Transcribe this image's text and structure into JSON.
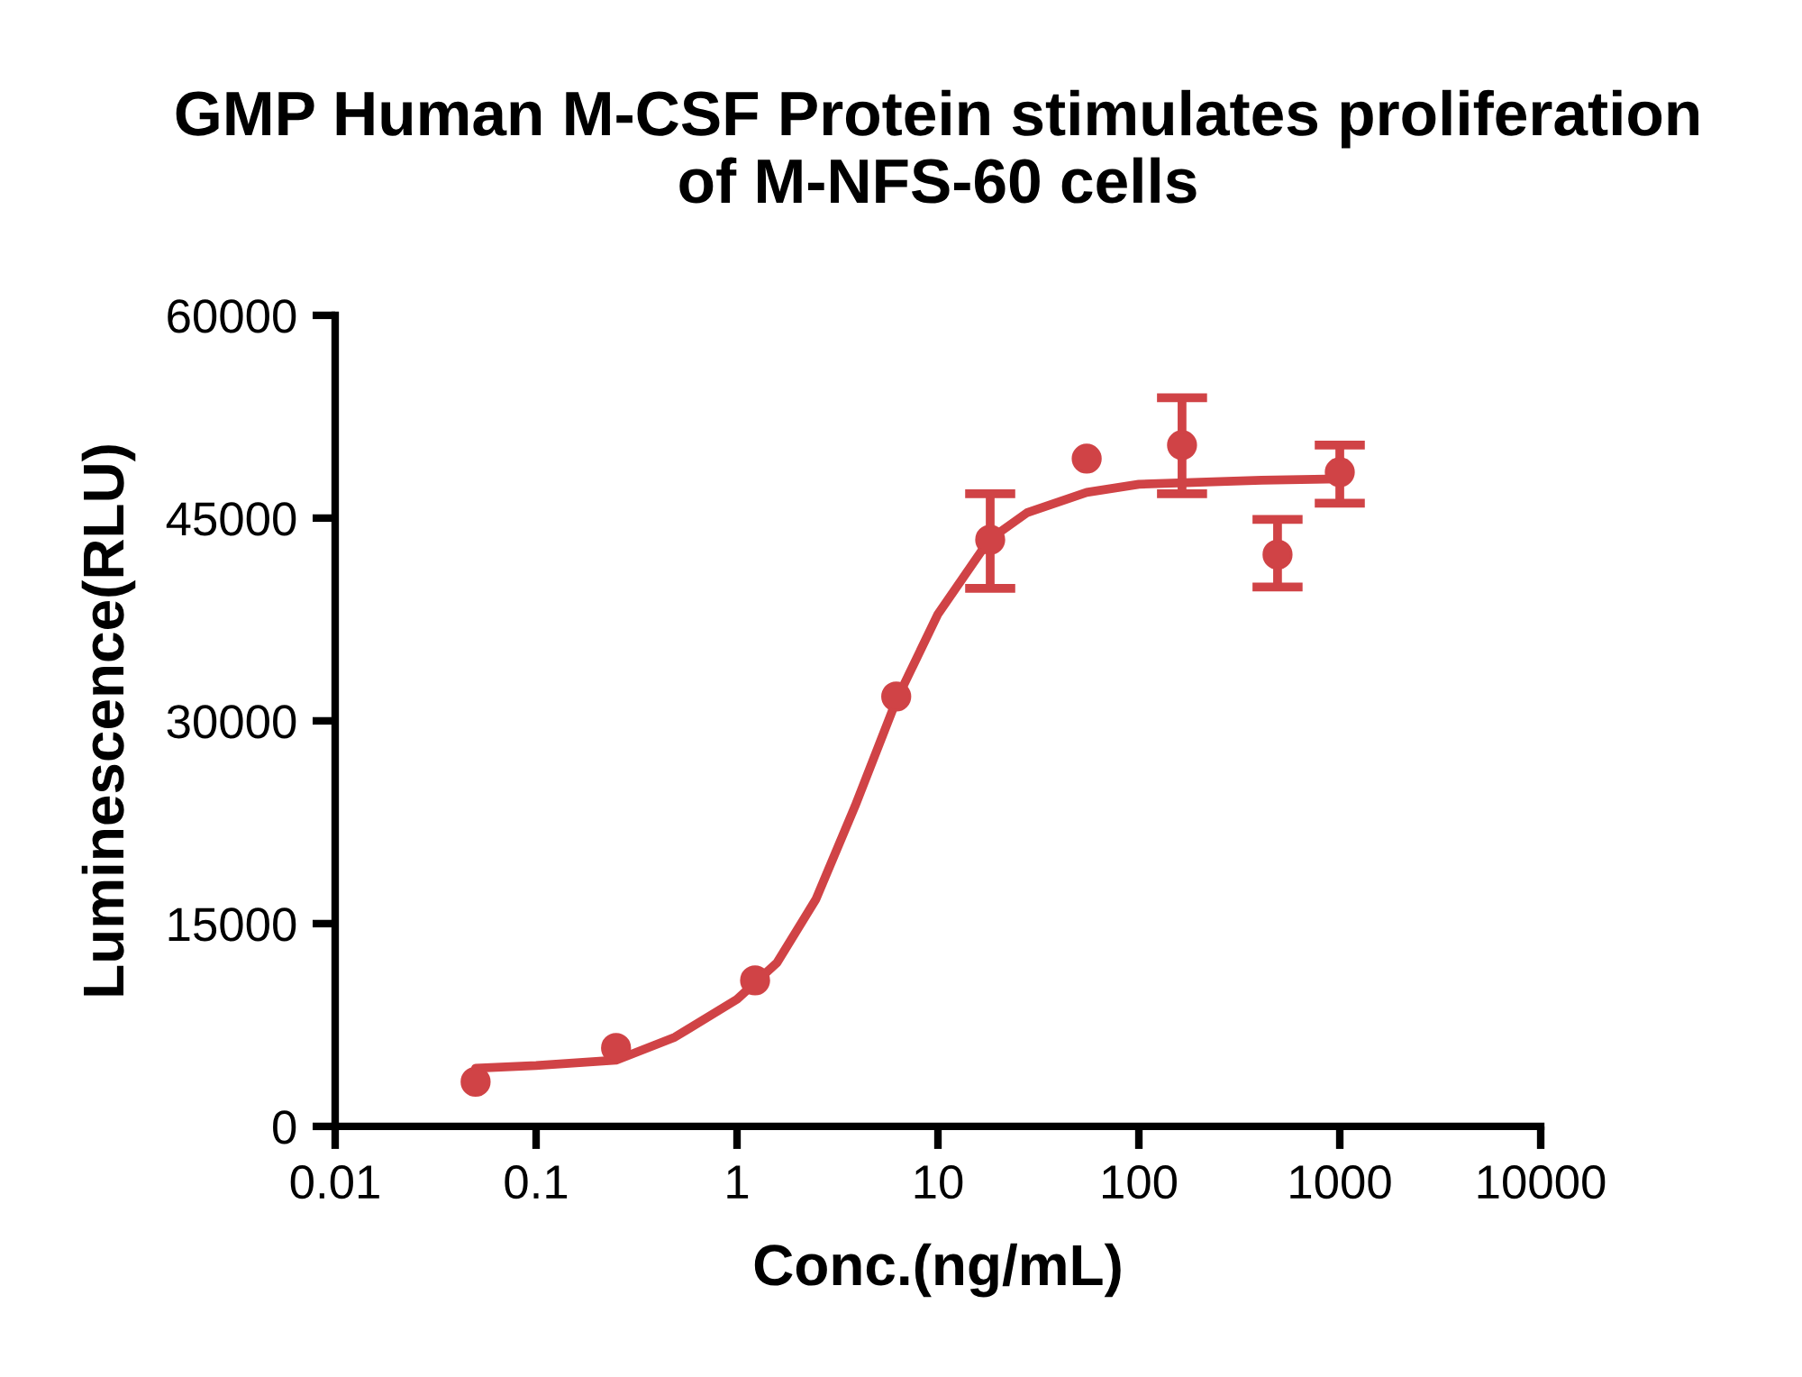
{
  "chart_data": {
    "type": "scatter",
    "title": "GMP Human M-CSF Protein stimulates proliferation\nof M-NFS-60 cells",
    "xlabel": "Conc.(ng/mL)",
    "ylabel": "Luminescence(RLU)",
    "log": "x",
    "xlim": [
      0.01,
      10000
    ],
    "xticks": [
      {
        "value": 0.01,
        "label": "0.01"
      },
      {
        "value": 0.1,
        "label": "0.1"
      },
      1,
      10,
      100,
      1000,
      10000
    ],
    "ylim": [
      0,
      60000
    ],
    "yticks": [
      0,
      15000,
      30000,
      45000,
      60000
    ],
    "grid": false,
    "legend": false,
    "series": [
      {
        "color": "#d04346",
        "marker": "circle",
        "x": [
          0.05,
          0.25,
          1.23,
          6.2,
          18.2,
          55,
          164,
          490,
          1000
        ],
        "values": [
          3300,
          5800,
          10800,
          31800,
          43400,
          49400,
          50400,
          42300,
          48400
        ],
        "errors": [
          null,
          null,
          null,
          null,
          [
            39800,
            46800
          ],
          null,
          [
            46800,
            53900
          ],
          [
            39900,
            44900
          ],
          [
            46100,
            50400
          ]
        ]
      },
      {
        "type": "line",
        "color": "#d04346",
        "marker": "none",
        "line_style": "solid",
        "x": [
          0.05,
          0.1,
          0.25,
          0.49,
          1,
          1.58,
          2.47,
          3.87,
          6.2,
          10,
          18,
          27.8,
          55,
          100,
          408,
          1000
        ],
        "values": [
          4300,
          4500,
          4900,
          6600,
          9400,
          12100,
          16800,
          23700,
          31500,
          37900,
          43400,
          45400,
          46900,
          47500,
          47800,
          47900
        ]
      }
    ]
  }
}
